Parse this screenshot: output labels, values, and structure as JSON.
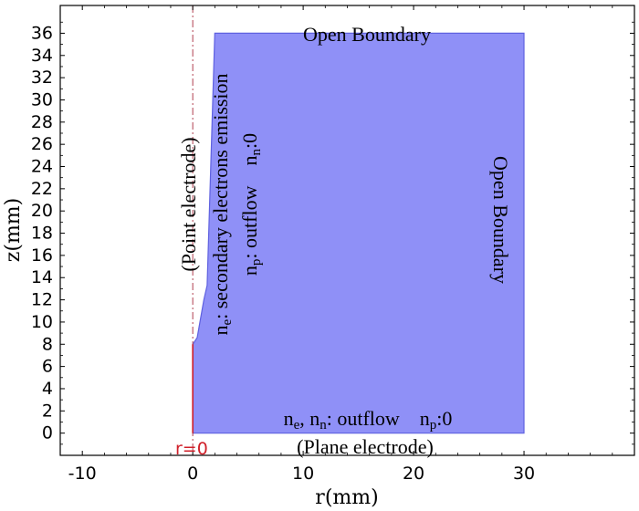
{
  "chart_data": {
    "type": "diagram",
    "xlabel": "r(mm)",
    "ylabel": "z(mm)",
    "xlim": [
      -12,
      40
    ],
    "ylim": [
      -2,
      38.5
    ],
    "x_ticks": [
      -10,
      0,
      10,
      20,
      30
    ],
    "y_ticks": [
      0,
      2,
      4,
      6,
      8,
      10,
      12,
      14,
      16,
      18,
      20,
      22,
      24,
      26,
      28,
      30,
      32,
      34,
      36
    ],
    "domain_color": "#8f90f7",
    "domain_edge_color": "#5f61e0",
    "axis_line_color": "#b04050",
    "domain_polygon": [
      [
        0,
        0
      ],
      [
        0,
        8
      ],
      [
        0.4,
        8.6
      ],
      [
        1,
        12
      ],
      [
        1.3,
        13.3
      ],
      [
        2,
        36
      ],
      [
        30,
        36
      ],
      [
        30,
        0
      ]
    ],
    "symmetry_axis_label": "r=0",
    "annotations": {
      "top": "Open Boundary",
      "right": "Open Boundary",
      "point_electrode": "(Point electrode)",
      "ne_line": {
        "var": "n",
        "sub": "e",
        "text": ": secondary electrons emission"
      },
      "np_nn_line": {
        "p_var": "n",
        "p_sub": "p",
        "p_text": ": outflow",
        "n_var": "n",
        "n_sub": "n",
        "n_text": ":0"
      },
      "bottom_line": {
        "a_var": "n",
        "a_sub": "e",
        "sep": ", ",
        "b_var": "n",
        "b_sub": "n",
        "b_text": ": outflow",
        "c_var": "n",
        "c_sub": "p",
        "c_text": ":0"
      },
      "plane_electrode": "(Plane electrode)"
    }
  }
}
